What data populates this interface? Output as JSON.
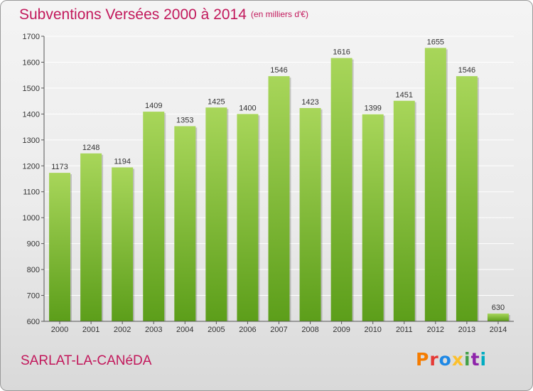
{
  "header": {
    "title": "Subventions Versées 2000 à 2014",
    "unit_note": "(en milliers d'€)"
  },
  "footer": {
    "commune": "SARLAT-LA-CANéDA",
    "logo_text": "Proxiti",
    "logo_colors": [
      "#f57c00",
      "#e53935",
      "#1e88e5",
      "#fbc02d",
      "#43a047",
      "#8e24aa",
      "#00acc1"
    ]
  },
  "colors": {
    "bar_light": "#a8d65a",
    "bar_dark": "#5c9e1a",
    "grid": "#ffffff",
    "axis": "#555555"
  },
  "chart_data": {
    "type": "bar",
    "categories": [
      "2000",
      "2001",
      "2002",
      "2003",
      "2004",
      "2005",
      "2006",
      "2007",
      "2008",
      "2009",
      "2010",
      "2011",
      "2012",
      "2013",
      "2014"
    ],
    "values": [
      1173,
      1248,
      1194,
      1409,
      1353,
      1425,
      1400,
      1546,
      1423,
      1616,
      1399,
      1451,
      1655,
      1546,
      630
    ],
    "ylim": [
      600,
      1700
    ],
    "yticks": [
      600,
      700,
      800,
      900,
      1000,
      1100,
      1200,
      1300,
      1400,
      1500,
      1600,
      1700
    ],
    "grid": true
  }
}
